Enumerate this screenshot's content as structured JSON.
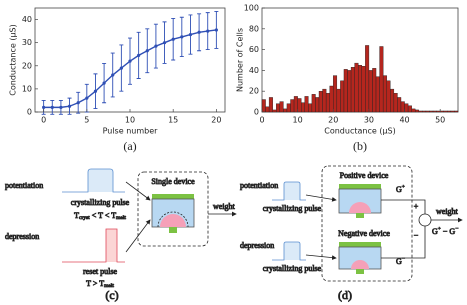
{
  "chart_data": [
    {
      "type": "line",
      "caption": "(a)",
      "x_label": "Pulse number",
      "y_label": "Conductance (μS)",
      "x": [
        0,
        1,
        2,
        3,
        4,
        5,
        6,
        7,
        8,
        9,
        10,
        11,
        12,
        13,
        14,
        15,
        16,
        17,
        18,
        19,
        20
      ],
      "series": [
        {
          "color": "#2f4fb5",
          "values": [
            2,
            2,
            2,
            2.5,
            4,
            6,
            9,
            12.5,
            16,
            19,
            22,
            24.5,
            26.5,
            28.5,
            30,
            31.5,
            32.5,
            33.5,
            34.5,
            35,
            35.5
          ],
          "errors": [
            3,
            3,
            3,
            3.5,
            4.5,
            6,
            7.5,
            8.5,
            9.5,
            10,
            10,
            10,
            9.5,
            9.5,
            9,
            9,
            8.5,
            8.5,
            8,
            8,
            8
          ]
        }
      ],
      "xlim": [
        -1,
        21
      ],
      "xticks": [
        0,
        5,
        10,
        15,
        20
      ],
      "ylim": [
        0,
        45
      ],
      "yticks": [
        0,
        10,
        20,
        30,
        40
      ]
    },
    {
      "type": "histogram",
      "caption": "(b)",
      "x_label": "Conductance (μS)",
      "y_label": "Number of Cells",
      "color": "#b5261e",
      "bins": [
        0,
        1,
        2,
        3,
        4,
        5,
        6,
        7,
        8,
        9,
        10,
        11,
        12,
        13,
        14,
        15,
        16,
        17,
        18,
        19,
        20,
        21,
        22,
        23,
        24,
        25,
        26,
        27,
        28,
        29,
        30,
        31,
        32,
        33,
        34,
        35,
        36,
        37,
        38,
        39,
        40,
        41,
        42,
        43,
        44,
        45,
        46,
        47,
        48,
        49,
        50,
        51,
        52,
        53,
        54,
        55
      ],
      "counts": [
        12,
        5,
        14,
        2,
        8,
        10,
        3,
        8,
        12,
        15,
        13,
        9,
        15,
        8,
        17,
        14,
        20,
        22,
        18,
        25,
        35,
        22,
        30,
        41,
        40,
        43,
        47,
        45,
        44,
        64,
        40,
        42,
        34,
        63,
        35,
        30,
        22,
        18,
        14,
        10,
        8,
        6,
        3,
        2,
        1,
        1,
        1,
        1,
        1,
        1,
        1,
        1,
        1,
        1,
        1
      ],
      "xlim": [
        0,
        55
      ],
      "xticks": [
        0,
        10,
        20,
        30,
        40,
        50
      ],
      "ylim": [
        0,
        100
      ],
      "yticks": [
        0,
        20,
        40,
        60,
        80,
        100
      ]
    }
  ],
  "diagram_c": {
    "caption": "(c)",
    "potentiation": "potentiation",
    "crystallizing_pulse": "crystallizing pulse",
    "condition": [
      "T",
      "cryst",
      " < T < ",
      "T",
      "melt"
    ],
    "depression": "depression",
    "reset_pulse": "reset pulse",
    "reset_condition": [
      "T > T",
      "melt"
    ],
    "device": "Single device",
    "weight": "weight"
  },
  "diagram_d": {
    "caption": "(d)",
    "potentiation": "potentiation",
    "crystallizing_pulse_1": "crystallizing pulse",
    "depression": "depression",
    "crystallizing_pulse_2": "crystallizing pulse",
    "positive_device": "Positive device",
    "g_plus": [
      "G",
      "+"
    ],
    "negative_device": "Negative device",
    "g_minus": [
      "G",
      "−"
    ],
    "plus": "+",
    "minus": "−",
    "weight": "weight",
    "difference": [
      "G",
      "+",
      " − G",
      "−"
    ]
  }
}
